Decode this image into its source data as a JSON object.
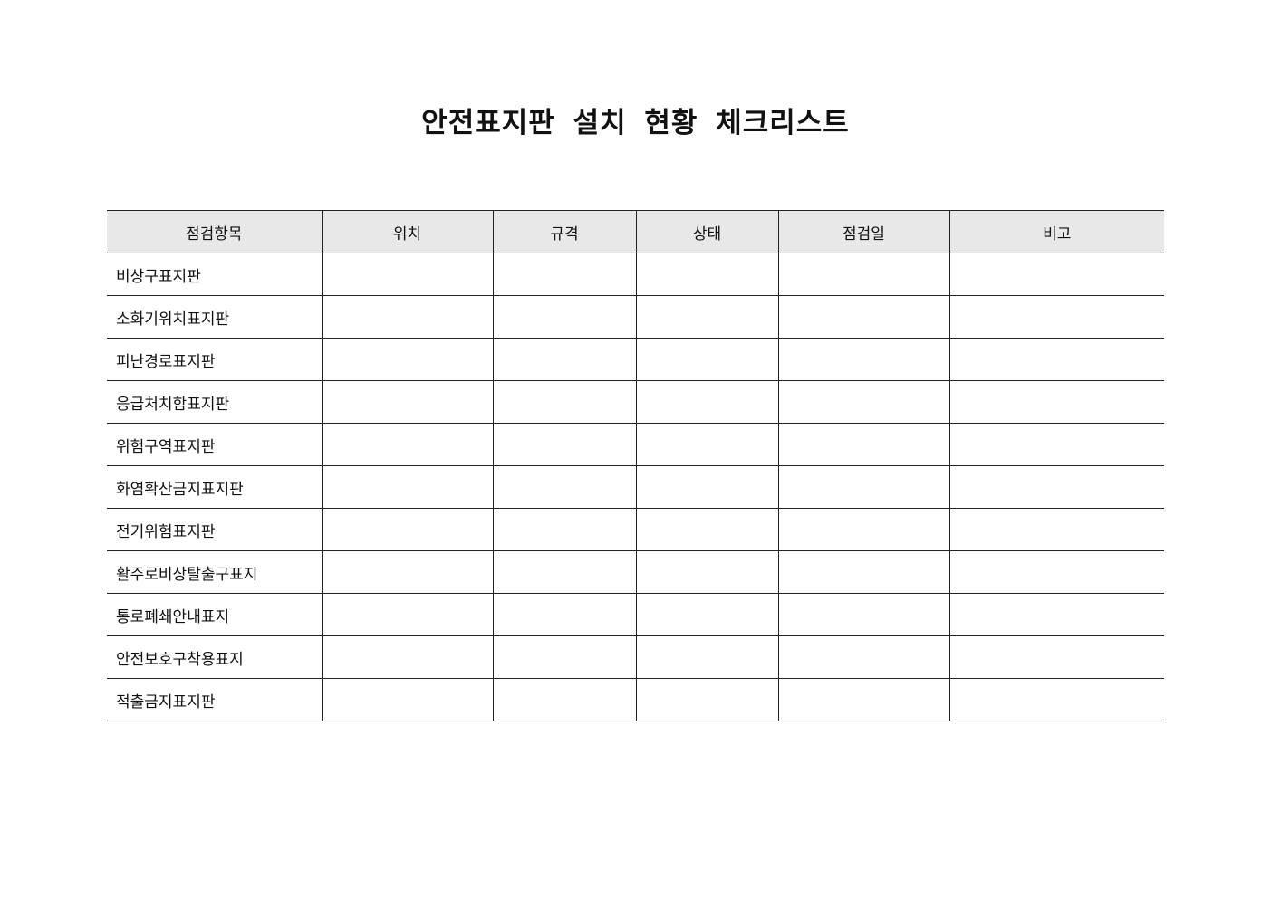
{
  "title": "안전표지판 설치 현황 체크리스트",
  "table": {
    "headers": [
      "점검항목",
      "위치",
      "규격",
      "상태",
      "점검일",
      "비고"
    ],
    "rows": [
      "비상구표지판",
      "소화기위치표지판",
      "피난경로표지판",
      "응급처치함표지판",
      "위험구역표지판",
      "화염확산금지표지판",
      "전기위험표지판",
      "활주로비상탈출구표지",
      "통로폐쇄안내표지",
      "안전보호구착용표지",
      "적출금지표지판"
    ]
  }
}
